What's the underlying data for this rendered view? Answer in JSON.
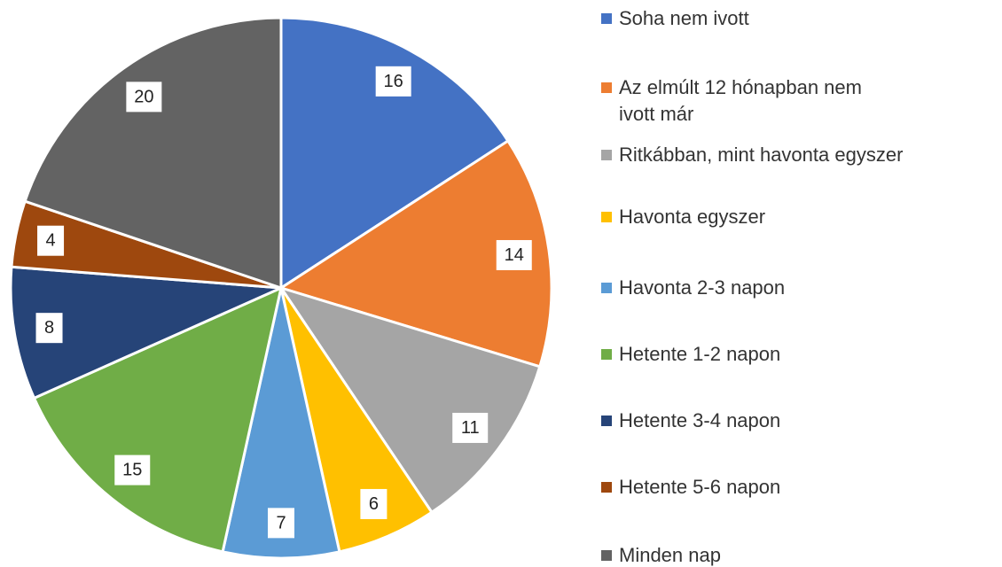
{
  "chart_data": {
    "type": "pie",
    "categories": [
      "Soha nem ivott",
      "Az elmúlt 12 hónapban nem ivott már",
      "Ritkábban, mint havonta egyszer",
      "Havonta egyszer",
      "Havonta 2-3 napon",
      "Hetente 1-2 napon",
      "Hetente 3-4 napon",
      "Hetente 5-6 napon",
      "Minden nap"
    ],
    "values": [
      16,
      14,
      11,
      6,
      7,
      15,
      8,
      4,
      20
    ],
    "colors": [
      "#4472c4",
      "#ed7d31",
      "#a5a5a5",
      "#ffc000",
      "#5b9bd5",
      "#70ad47",
      "#264478",
      "#9e480e",
      "#636363"
    ],
    "legend": "right"
  }
}
